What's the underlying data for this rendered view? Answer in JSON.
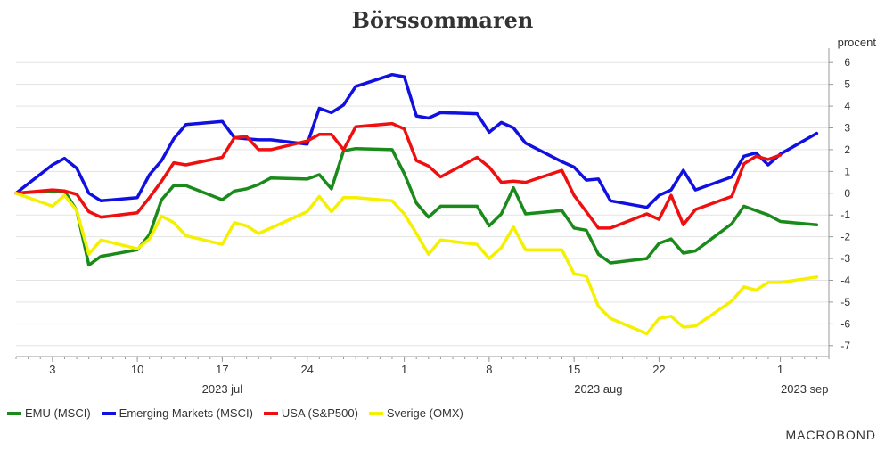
{
  "title": "Börssommaren",
  "logo_text": "MACROBOND",
  "chart_data": {
    "type": "line",
    "title": "Börssommaren",
    "ylabel": "procent",
    "ylim": [
      -7.5,
      6.5
    ],
    "y_ticks": [
      -7,
      -6,
      -5,
      -4,
      -3,
      -2,
      -1,
      0,
      1,
      2,
      3,
      4,
      5,
      6
    ],
    "y_tick_labels": [
      "-7",
      "-6",
      "-5",
      "-4",
      "-3",
      "-2",
      "-1",
      "0",
      "1",
      "2",
      "3",
      "4",
      "5",
      "6"
    ],
    "x_range": [
      "2023-06-30",
      "2023-09-05"
    ],
    "x_ticks": [
      {
        "date": "2023-07-03",
        "label": "3"
      },
      {
        "date": "2023-07-10",
        "label": "10"
      },
      {
        "date": "2023-07-17",
        "label": "17"
      },
      {
        "date": "2023-07-24",
        "label": "24"
      },
      {
        "date": "2023-08-01",
        "label": "1"
      },
      {
        "date": "2023-08-08",
        "label": "8"
      },
      {
        "date": "2023-08-15",
        "label": "15"
      },
      {
        "date": "2023-08-22",
        "label": "22"
      },
      {
        "date": "2023-09-01",
        "label": "1"
      }
    ],
    "period_labels": [
      {
        "date": "2023-07-17",
        "label": "2023 jul"
      },
      {
        "date": "2023-08-17",
        "label": "2023 aug"
      },
      {
        "date": "2023-09-03",
        "label": "2023 sep"
      }
    ],
    "x": [
      "2023-06-30",
      "2023-07-03",
      "2023-07-04",
      "2023-07-05",
      "2023-07-06",
      "2023-07-07",
      "2023-07-10",
      "2023-07-11",
      "2023-07-12",
      "2023-07-13",
      "2023-07-14",
      "2023-07-17",
      "2023-07-18",
      "2023-07-19",
      "2023-07-20",
      "2023-07-21",
      "2023-07-24",
      "2023-07-25",
      "2023-07-26",
      "2023-07-27",
      "2023-07-28",
      "2023-07-31",
      "2023-08-01",
      "2023-08-02",
      "2023-08-03",
      "2023-08-04",
      "2023-08-07",
      "2023-08-08",
      "2023-08-09",
      "2023-08-10",
      "2023-08-11",
      "2023-08-14",
      "2023-08-15",
      "2023-08-16",
      "2023-08-17",
      "2023-08-18",
      "2023-08-21",
      "2023-08-22",
      "2023-08-23",
      "2023-08-24",
      "2023-08-25",
      "2023-08-28",
      "2023-08-29",
      "2023-08-30",
      "2023-08-31",
      "2023-09-01",
      "2023-09-04"
    ],
    "series": [
      {
        "name": "EMU (MSCI)",
        "color": "#1a8a1a",
        "values": [
          0.0,
          0.1,
          0.1,
          -0.8,
          -3.3,
          -2.9,
          -2.6,
          -1.9,
          -0.3,
          0.35,
          0.35,
          -0.3,
          0.1,
          0.2,
          0.4,
          0.7,
          0.65,
          0.85,
          0.2,
          1.95,
          2.05,
          2.0,
          0.9,
          -0.45,
          -1.1,
          -0.6,
          -0.6,
          -1.5,
          -0.95,
          0.25,
          -0.95,
          -0.8,
          -1.6,
          -1.7,
          -2.8,
          -3.2,
          -3.0,
          -2.3,
          -2.1,
          -2.75,
          -2.65,
          -1.4,
          -0.6,
          -0.8,
          -1.0,
          -1.3,
          -1.45
        ]
      },
      {
        "name": "Emerging Markets (MSCI)",
        "color": "#1010e0",
        "values": [
          0.0,
          1.3,
          1.6,
          1.15,
          0.0,
          -0.35,
          -0.2,
          0.85,
          1.5,
          2.5,
          3.15,
          3.3,
          2.55,
          2.5,
          2.45,
          2.45,
          2.25,
          3.9,
          3.7,
          4.05,
          4.9,
          5.45,
          5.35,
          3.55,
          3.45,
          3.7,
          3.65,
          2.8,
          3.25,
          3.0,
          2.3,
          1.45,
          1.2,
          0.6,
          0.65,
          -0.35,
          -0.65,
          -0.1,
          0.15,
          1.05,
          0.15,
          0.75,
          1.7,
          1.85,
          1.3,
          1.8,
          2.75
        ]
      },
      {
        "name": "USA (S&P500)",
        "color": "#ee1010",
        "values": [
          0.0,
          0.15,
          0.1,
          -0.05,
          -0.85,
          -1.1,
          -0.9,
          -0.2,
          0.55,
          1.4,
          1.3,
          1.65,
          2.55,
          2.6,
          2.0,
          2.0,
          2.4,
          2.7,
          2.7,
          2.0,
          3.05,
          3.2,
          2.95,
          1.5,
          1.25,
          0.75,
          1.65,
          1.2,
          0.5,
          0.55,
          0.5,
          1.05,
          -0.1,
          -0.85,
          -1.6,
          -1.6,
          -0.95,
          -1.2,
          -0.1,
          -1.45,
          -0.75,
          -0.15,
          1.35,
          1.7,
          1.55,
          1.75,
          null
        ]
      },
      {
        "name": "Sverige (OMX)",
        "color": "#f5f000",
        "values": [
          0.0,
          -0.6,
          -0.1,
          -0.8,
          -2.8,
          -2.15,
          -2.55,
          -2.1,
          -1.05,
          -1.35,
          -1.95,
          -2.35,
          -1.35,
          -1.5,
          -1.85,
          -1.6,
          -0.85,
          -0.15,
          -0.85,
          -0.2,
          -0.2,
          -0.35,
          -0.95,
          -1.85,
          -2.8,
          -2.15,
          -2.35,
          -3.0,
          -2.5,
          -1.55,
          -2.6,
          -2.6,
          -3.7,
          -3.8,
          -5.2,
          -5.75,
          -6.45,
          -5.75,
          -5.65,
          -6.15,
          -6.1,
          -4.95,
          -4.3,
          -4.45,
          -4.1,
          -4.1,
          -3.85
        ]
      }
    ],
    "legend_position": "bottom-left",
    "grid": true
  }
}
